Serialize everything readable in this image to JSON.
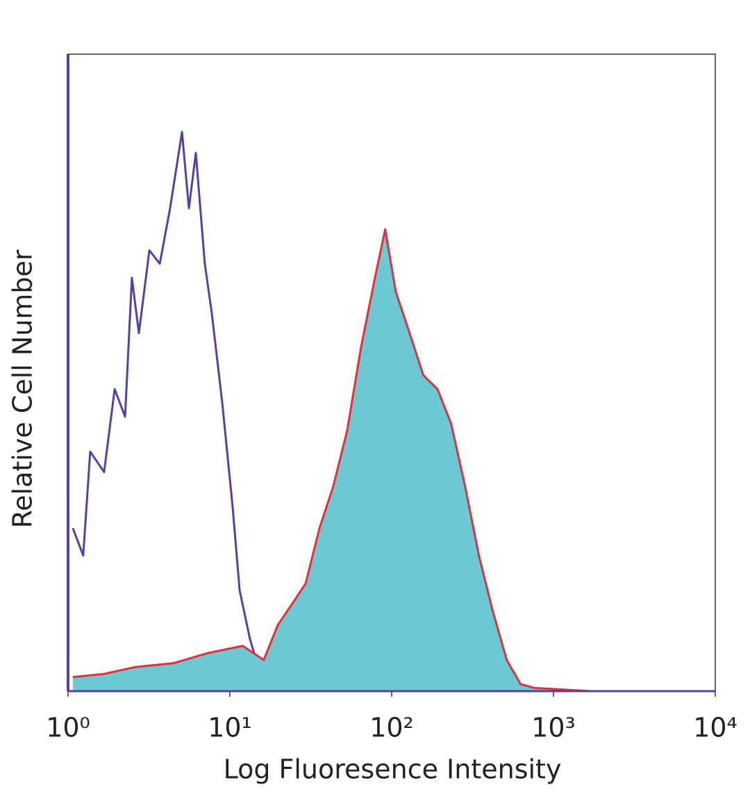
{
  "chart_data": {
    "type": "histogram-overlay",
    "x_label": "Log Fluoresence Intensity",
    "y_label": "Relative Cell Number",
    "xscale": "log",
    "xlim": [
      1,
      10000
    ],
    "ylim": [
      0,
      100
    ],
    "xticks": [
      {
        "value": 1,
        "label": "10⁰"
      },
      {
        "value": 10,
        "label": "10¹"
      },
      {
        "value": 100,
        "label": "10²"
      },
      {
        "value": 1000,
        "label": "10³"
      },
      {
        "value": 10000,
        "label": "10⁴"
      }
    ],
    "series": [
      {
        "color": "#5b3fa0",
        "fill": null,
        "x": [
          1.07,
          1.24,
          1.37,
          1.67,
          1.94,
          2.25,
          2.48,
          2.74,
          3.18,
          3.69,
          4.27,
          5.06,
          5.58,
          6.16,
          7.0,
          7.73,
          8.97,
          10.4,
          11.5,
          13.3,
          15.4,
          17.1,
          10000
        ],
        "values": [
          25.6,
          21.3,
          37.6,
          34.4,
          47.4,
          43.1,
          64.9,
          56.2,
          69.2,
          67.1,
          75.8,
          87.8,
          75.8,
          84.5,
          67.1,
          59.4,
          45.3,
          28.9,
          15.8,
          8.2,
          2.7,
          0,
          0
        ]
      },
      {
        "color": "#e0303a",
        "fill": "#6cc9d4",
        "x": [
          1.07,
          1.67,
          2.61,
          4.49,
          7.36,
          12.0,
          16.2,
          19.8,
          24.1,
          29.4,
          35.8,
          43.6,
          53.1,
          64.7,
          78.8,
          91.2,
          106,
          129,
          157,
          192,
          233,
          284,
          346,
          422,
          514,
          626,
          763,
          1690,
          10000
        ],
        "values": [
          2.2,
          2.7,
          3.8,
          4.4,
          6.0,
          7.1,
          4.9,
          10.4,
          13.6,
          16.9,
          25.6,
          32.2,
          40.9,
          54.0,
          64.9,
          72.5,
          62.7,
          56.2,
          49.6,
          47.4,
          42.0,
          32.2,
          21.3,
          12.5,
          4.9,
          1.1,
          0.5,
          0,
          0
        ]
      }
    ]
  }
}
